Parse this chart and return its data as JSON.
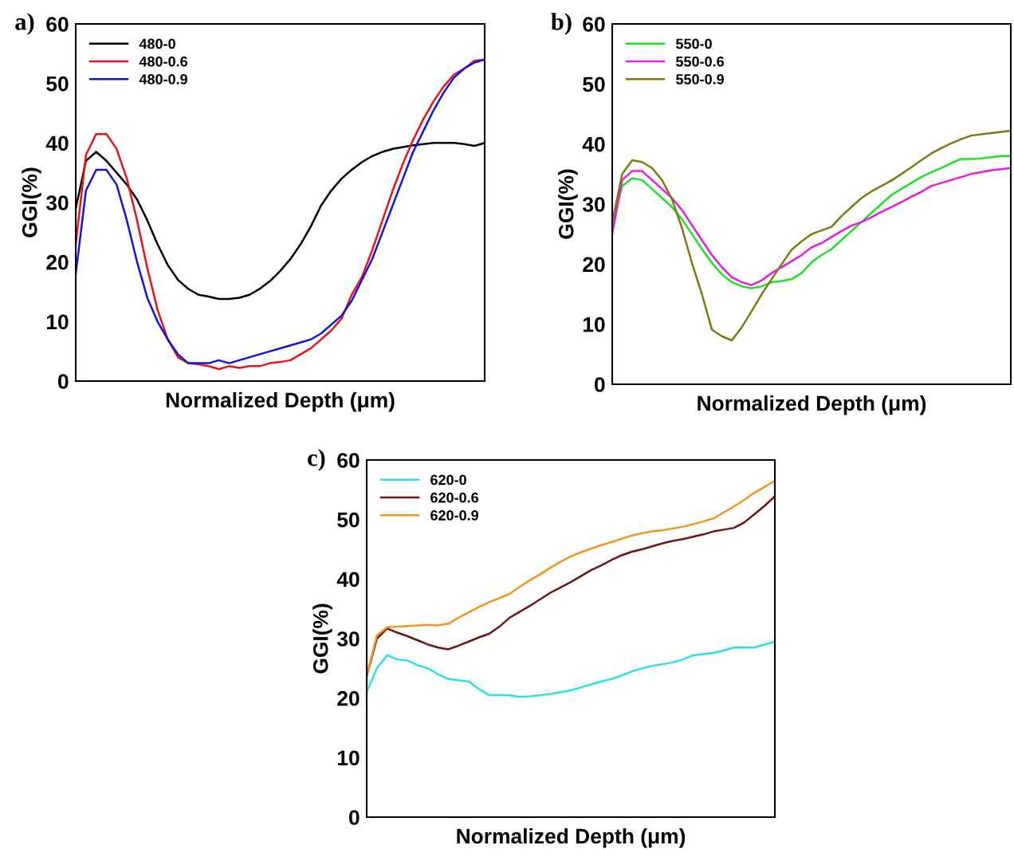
{
  "chart_data": [
    {
      "type": "line",
      "title": "a)",
      "xlabel": "Normalized Depth (μm)",
      "ylabel": "GGI(%)",
      "ylim": [
        0,
        60
      ],
      "yticks": [
        0,
        10,
        20,
        30,
        40,
        50,
        60
      ],
      "legend": "top left",
      "grid": false,
      "tick_labels": "y",
      "categories": [
        null,
        null,
        null,
        null,
        null,
        null,
        null,
        null,
        null,
        null,
        null,
        null,
        null,
        null,
        null,
        null,
        null,
        null,
        null,
        null,
        null,
        null,
        null,
        null,
        null,
        null,
        null,
        null,
        null,
        null,
        null,
        null,
        null,
        null,
        null,
        null,
        null,
        null,
        null,
        null,
        null
      ],
      "series": [
        {
          "name": "480-0",
          "color": "#000000",
          "values": [
            29,
            37,
            38.5,
            37,
            35,
            33,
            30.5,
            27,
            23,
            19.5,
            17,
            15.5,
            14.5,
            14.2,
            13.8,
            13.8,
            14,
            14.5,
            15.5,
            16.8,
            18.5,
            20.5,
            23,
            26,
            29.5,
            32,
            34,
            35.5,
            36.8,
            37.8,
            38.5,
            39,
            39.3,
            39.6,
            39.8,
            40,
            40,
            40,
            39.8,
            39.5,
            40
          ]
        },
        {
          "name": "480-0.6",
          "color": "#e8141c",
          "values": [
            23,
            38,
            41.5,
            41.5,
            39,
            34,
            27,
            19,
            12,
            7,
            4,
            3,
            2.8,
            2.5,
            2,
            2.5,
            2.2,
            2.5,
            2.5,
            3,
            3.2,
            3.5,
            4.5,
            5.5,
            7,
            8.5,
            10.5,
            14.5,
            17.5,
            22,
            27,
            32,
            36.5,
            40.5,
            44,
            47,
            49.5,
            51.5,
            52.5,
            53.8,
            54
          ]
        },
        {
          "name": "480-0.9",
          "color": "#1414d8",
          "values": [
            18,
            32,
            35.5,
            35.5,
            33,
            27,
            20,
            14,
            10,
            7,
            4.5,
            3,
            3,
            3,
            3.5,
            3,
            3.5,
            4,
            4.5,
            5,
            5.5,
            6,
            6.5,
            7,
            8,
            9.5,
            11,
            13.5,
            17,
            20.5,
            25,
            29.5,
            34,
            38.5,
            42,
            45.5,
            48.5,
            51,
            52.5,
            53.5,
            54
          ]
        }
      ]
    },
    {
      "type": "line",
      "title": "b)",
      "xlabel": "Normalized Depth (μm)",
      "ylabel": "GGI(%)",
      "ylim": [
        0,
        60
      ],
      "yticks": [
        0,
        10,
        20,
        30,
        40,
        50,
        60
      ],
      "legend": "top left",
      "grid": false,
      "tick_labels": "y",
      "categories": [
        null,
        null,
        null,
        null,
        null,
        null,
        null,
        null,
        null,
        null,
        null,
        null,
        null,
        null,
        null,
        null,
        null,
        null,
        null,
        null,
        null,
        null,
        null,
        null,
        null,
        null,
        null,
        null,
        null,
        null,
        null,
        null,
        null,
        null,
        null,
        null,
        null,
        null,
        null,
        null,
        null
      ],
      "series": [
        {
          "name": "550-0",
          "color": "#22e02a",
          "values": [
            27,
            33,
            34.3,
            34,
            32.5,
            31,
            29.5,
            27.5,
            25,
            22.5,
            20.2,
            18.3,
            17,
            16.3,
            16,
            16.3,
            17,
            17.2,
            17.5,
            18.5,
            20.3,
            21.5,
            22.5,
            24,
            25.5,
            27,
            28.5,
            30,
            31.5,
            32.5,
            33.5,
            34.5,
            35.3,
            36,
            36.8,
            37.5,
            37.5,
            37.6,
            37.8,
            38,
            38
          ]
        },
        {
          "name": "550-0.6",
          "color": "#e81ce0",
          "values": [
            25,
            34,
            35.5,
            35.5,
            34,
            32.5,
            31,
            29,
            26.5,
            24,
            21.5,
            19.5,
            17.8,
            17,
            16.5,
            17.3,
            18.5,
            19.5,
            20.5,
            21.5,
            22.8,
            23.5,
            24.5,
            25.5,
            26.4,
            27,
            27.8,
            28.7,
            29.5,
            30.3,
            31.2,
            32,
            33,
            33.5,
            34,
            34.5,
            35,
            35.3,
            35.6,
            35.8,
            36
          ]
        },
        {
          "name": "550-0.9",
          "color": "#7d7a14",
          "values": [
            27,
            35,
            37.3,
            37,
            36,
            34,
            30.8,
            26,
            20.2,
            15,
            9.1,
            8,
            7.3,
            9.5,
            12.2,
            15,
            17.5,
            20,
            22.4,
            23.8,
            25,
            25.6,
            26.2,
            28,
            29.5,
            31,
            32.1,
            33,
            33.9,
            35,
            36.1,
            37.3,
            38.4,
            39.3,
            40.1,
            40.8,
            41.4,
            41.6,
            41.8,
            42,
            42.2
          ]
        }
      ]
    },
    {
      "type": "line",
      "title": "c)",
      "xlabel": "Normalized Depth (μm)",
      "ylabel": "GGI(%)",
      "ylim": [
        0,
        60
      ],
      "yticks": [
        0,
        10,
        20,
        30,
        40,
        50,
        60
      ],
      "legend": "top left",
      "grid": false,
      "tick_labels": "y",
      "categories": [
        null,
        null,
        null,
        null,
        null,
        null,
        null,
        null,
        null,
        null,
        null,
        null,
        null,
        null,
        null,
        null,
        null,
        null,
        null,
        null,
        null,
        null,
        null,
        null,
        null,
        null,
        null,
        null,
        null,
        null,
        null,
        null,
        null,
        null,
        null,
        null,
        null,
        null,
        null,
        null,
        null
      ],
      "series": [
        {
          "name": "620-0",
          "color": "#2ce0e6",
          "values": [
            21,
            25,
            27.2,
            26.5,
            26.3,
            25.5,
            25,
            24,
            23.2,
            23,
            22.8,
            21.5,
            20.5,
            20.5,
            20.5,
            20.2,
            20.3,
            20.5,
            20.7,
            21,
            21.3,
            21.8,
            22.3,
            22.8,
            23.2,
            23.8,
            24.5,
            25,
            25.4,
            25.7,
            26,
            26.5,
            27.2,
            27.4,
            27.6,
            28,
            28.5,
            28.5,
            28.5,
            29,
            29.5
          ]
        },
        {
          "name": "620-0.6",
          "color": "#6e1414",
          "values": [
            23.7,
            30,
            31.7,
            31,
            30.4,
            29.7,
            29,
            28.5,
            28.2,
            28.8,
            29.5,
            30.2,
            30.8,
            32,
            33.5,
            34.5,
            35.5,
            36.6,
            37.7,
            38.6,
            39.5,
            40.5,
            41.5,
            42.3,
            43.2,
            44,
            44.6,
            45,
            45.5,
            46,
            46.4,
            46.7,
            47.1,
            47.5,
            48,
            48.3,
            48.6,
            49.5,
            50.9,
            52.3,
            53.9
          ]
        },
        {
          "name": "620-0.9",
          "color": "#f0961e",
          "values": [
            23.7,
            30.5,
            31.9,
            32,
            32.1,
            32.2,
            32.3,
            32.2,
            32.5,
            33.5,
            34.4,
            35.3,
            36.1,
            36.8,
            37.5,
            38.7,
            39.8,
            40.8,
            41.9,
            42.9,
            43.8,
            44.5,
            45.1,
            45.7,
            46.2,
            46.8,
            47.3,
            47.7,
            48,
            48.2,
            48.5,
            48.8,
            49.2,
            49.7,
            50.2,
            51.2,
            52.2,
            53.3,
            54.5,
            55.5,
            56.5
          ]
        }
      ]
    }
  ]
}
